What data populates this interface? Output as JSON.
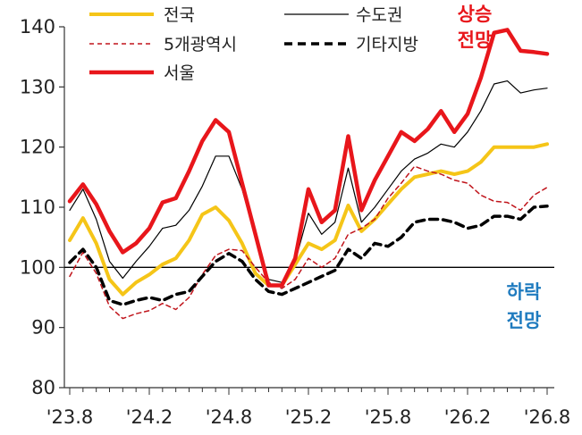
{
  "chart_data": {
    "type": "line",
    "ylim": [
      80,
      140
    ],
    "yticks": [
      80,
      90,
      100,
      110,
      120,
      130,
      140
    ],
    "xtick_labels": [
      "'23.8",
      "'24.2",
      "'24.8",
      "'25.2",
      "'25.8",
      "'26.2",
      "'26.8"
    ],
    "x": [
      "'23.8",
      "'23.9",
      "'23.10",
      "'23.11",
      "'23.12",
      "'24.1",
      "'24.2",
      "'24.3",
      "'24.4",
      "'24.5",
      "'24.6",
      "'24.7",
      "'24.8",
      "'24.9",
      "'24.10",
      "'24.11",
      "'24.12",
      "'25.1",
      "'25.2",
      "'25.3",
      "'25.4",
      "'25.5",
      "'25.6",
      "'25.7",
      "'25.8",
      "'25.9",
      "'25.10",
      "'25.11",
      "'25.12",
      "'26.1",
      "'26.2",
      "'26.3",
      "'26.4",
      "'26.5",
      "'26.6",
      "'26.7",
      "'26.8"
    ],
    "reference_line": 100,
    "annotations": {
      "up": [
        "상승",
        "전망"
      ],
      "down": [
        "하락",
        "전망"
      ]
    },
    "colors": {
      "up": "#e8161b",
      "down": "#1f7bbf"
    },
    "series": [
      {
        "name": "전국",
        "color": "#f5c518",
        "width": 4,
        "dash": "",
        "values": [
          104.5,
          108.2,
          104.0,
          98.0,
          95.5,
          97.5,
          98.8,
          100.5,
          101.5,
          104.5,
          108.8,
          110.0,
          107.8,
          104.0,
          99.0,
          97.0,
          97.0,
          100.5,
          104.0,
          103.0,
          104.5,
          110.3,
          106.0,
          108.0,
          110.5,
          113.0,
          115.0,
          115.5,
          116.0,
          115.5,
          116.0,
          117.5,
          120.0,
          120.0,
          120.0,
          120.0,
          120.5
        ]
      },
      {
        "name": "수도권",
        "color": "#000000",
        "width": 1.2,
        "dash": "",
        "values": [
          109.5,
          113.0,
          108.0,
          101.0,
          98.2,
          101.0,
          103.5,
          106.5,
          107.0,
          109.5,
          113.5,
          118.5,
          118.5,
          113.0,
          105.0,
          98.0,
          97.5,
          101.0,
          109.0,
          105.5,
          107.5,
          116.5,
          107.5,
          110.0,
          113.0,
          116.0,
          118.0,
          119.0,
          120.5,
          120.0,
          122.5,
          126.0,
          130.5,
          131.0,
          129.0,
          129.5,
          129.8
        ]
      },
      {
        "name": "5개광역시",
        "color": "#c0141b",
        "width": 1.5,
        "dash": "5,4",
        "values": [
          98.5,
          102.5,
          99.0,
          93.5,
          91.5,
          92.3,
          92.8,
          94.0,
          93.0,
          95.0,
          98.8,
          102.0,
          103.0,
          102.8,
          100.0,
          97.5,
          96.5,
          98.0,
          101.5,
          100.0,
          101.5,
          105.5,
          106.5,
          108.0,
          111.5,
          114.0,
          116.8,
          116.0,
          115.5,
          114.5,
          114.0,
          112.0,
          111.0,
          110.8,
          109.5,
          112.0,
          113.3
        ]
      },
      {
        "name": "기타지방",
        "color": "#000000",
        "width": 3.5,
        "dash": "9,6",
        "values": [
          100.8,
          103.0,
          100.0,
          94.5,
          93.8,
          94.5,
          95.0,
          94.5,
          95.5,
          96.0,
          98.5,
          101.0,
          102.3,
          101.0,
          98.0,
          96.0,
          95.5,
          96.5,
          97.5,
          98.5,
          99.5,
          103.0,
          101.5,
          104.0,
          103.5,
          105.0,
          107.5,
          108.0,
          108.0,
          107.5,
          106.5,
          107.0,
          108.5,
          108.5,
          108.0,
          110.0,
          110.2
        ]
      },
      {
        "name": "서울",
        "color": "#e8161b",
        "width": 4.5,
        "dash": "",
        "values": [
          111.0,
          113.8,
          110.5,
          106.0,
          102.5,
          104.0,
          106.5,
          110.8,
          111.5,
          116.0,
          121.0,
          124.5,
          122.5,
          114.0,
          105.5,
          97.0,
          97.0,
          101.5,
          113.0,
          107.5,
          109.5,
          121.8,
          109.5,
          114.5,
          118.5,
          122.5,
          121.0,
          123.0,
          126.0,
          122.5,
          125.5,
          131.5,
          139.0,
          139.5,
          136.0,
          135.8,
          135.5
        ]
      }
    ]
  }
}
